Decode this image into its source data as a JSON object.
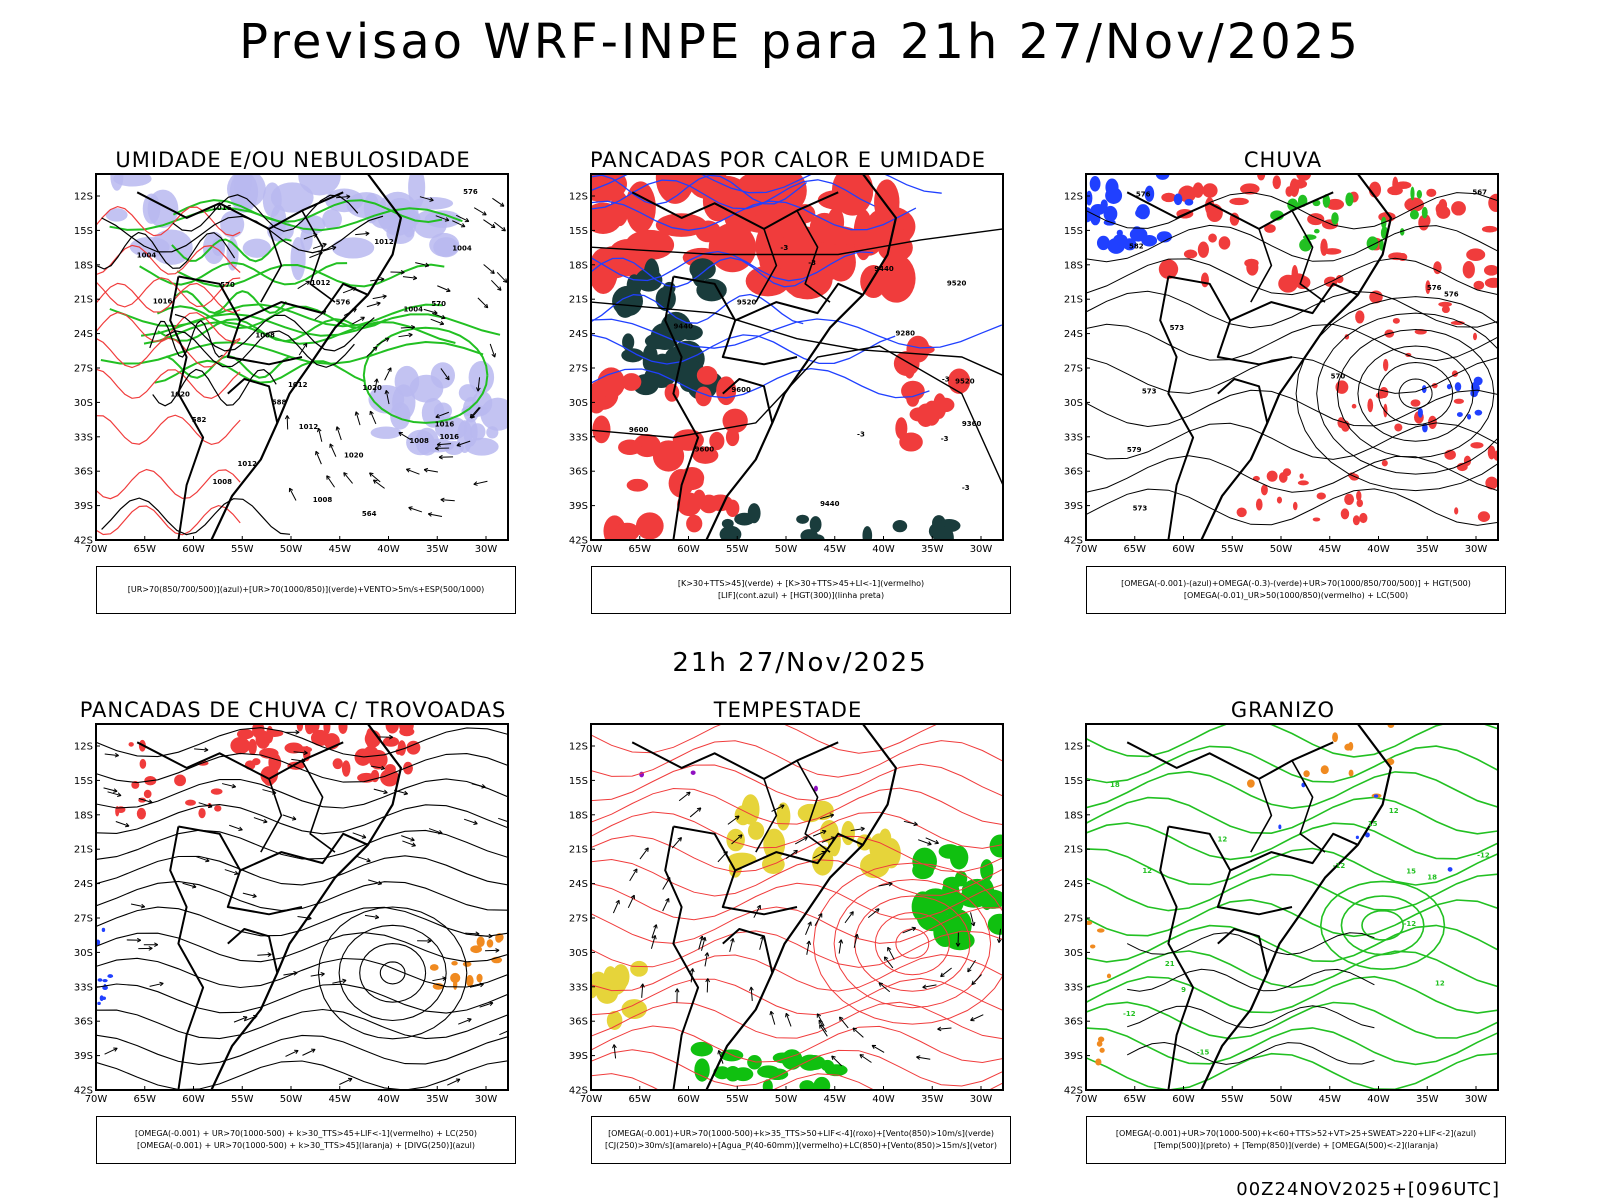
{
  "header": {
    "title": "Previsao WRF-INPE  para 21h 27/Nov/2025",
    "subtitle": "21h 27/Nov/2025",
    "footer": "00Z24NOV2025+[096UTC]"
  },
  "axes": {
    "lat_labels": [
      "12S",
      "15S",
      "18S",
      "21S",
      "24S",
      "27S",
      "30S",
      "33S",
      "36S",
      "39S",
      "42S"
    ],
    "lon_labels": [
      "70W",
      "65W",
      "60W",
      "55W",
      "50W",
      "45W",
      "40W",
      "35W",
      "30W"
    ]
  },
  "colors": {
    "red": "#f03c3c",
    "green": "#22c022",
    "blue": "#2040ff",
    "lavender": "#b8b8f0",
    "darkteal": "#1a3c3c",
    "yellow": "#e6d43a",
    "orange": "#f08a20",
    "purple": "#9010c0",
    "brightgreen": "#10c010"
  },
  "panels": [
    {
      "id": "p1",
      "title": "UMIDADE E/OU NEBULOSIDADE",
      "legend": [
        "[UR>70(850/700/500)](azul)+[UR>70(1000/850)](verde)+VENTO>5m/s+ESP(500/1000)"
      ],
      "labels": [
        "1012",
        "1008",
        "1012",
        "1004",
        "1008",
        "1012",
        "1016",
        "1012",
        "1016",
        "1020",
        "1004",
        "1008",
        "1016",
        "1020",
        "1004",
        "1008",
        "1012",
        "1016",
        "1020",
        "570",
        "576",
        "582",
        "570",
        "564",
        "576",
        "588"
      ]
    },
    {
      "id": "p2",
      "title": "PANCADAS POR CALOR E UMIDADE",
      "legend": [
        "[K>30+TTS>45](verde) + [K>30+TTS>45+LI<-1](vermelho)",
        "[LIF](cont.azul) + [HGT(300)](linha preta)"
      ],
      "labels": [
        "9600",
        "9600",
        "9600",
        "9520",
        "9520",
        "9520",
        "9440",
        "9440",
        "9440",
        "9360",
        "9280",
        "-3",
        "-3",
        "-3",
        "-3",
        "-3",
        "-3"
      ]
    },
    {
      "id": "p3",
      "title": "CHUVA",
      "legend": [
        "[OMEGA(-0.001)-(azul)+OMEGA(-0.3)-(verde)+UR>70(1000/850/700/500)] + HGT(500)",
        "[OMEGA(-0.01)_UR>50(1000/850)(vermelho) + LC(500)"
      ],
      "labels": [
        "582",
        "576",
        "576",
        "573",
        "573",
        "573",
        "570",
        "567",
        "579",
        "576"
      ]
    },
    {
      "id": "p4",
      "title": "PANCADAS DE CHUVA C/ TROVOADAS",
      "legend": [
        "[OMEGA(-0.001) + UR>70(1000-500) + k>30_TTS>45+LIF<-1](vermelho) + LC(250)",
        "[OMEGA(-0.001) + UR>70(1000-500) + k>30_TTS>45](laranja) + [DIVG(250)](azul)"
      ],
      "labels": []
    },
    {
      "id": "p5",
      "title": "TEMPESTADE",
      "legend": [
        "[OMEGA(-0.001)+UR>70(1000-500)+k>35_TTS>50+LIF<-4](roxo)+[Vento(850)>10m/s](verde)",
        "[CJ(250)>30m/s](amarelo)+[Agua_P(40-60mm)](vermelho)+LC(850)+[Vento(850)>15m/s](vetor)"
      ],
      "labels": []
    },
    {
      "id": "p6",
      "title": "GRANIZO",
      "legend": [
        "[OMEGA(-0.001)+UR>70(1000-500)+k<60+TTS>52+VT>25+SWEAT>220+LIF<-2](azul)",
        "[Temp(500)](preto) + [Temp(850)](verde) + [OMEGA(500)<-2](laranja)"
      ],
      "labels": [
        "-12",
        "-12",
        "-12",
        "-15",
        "12",
        "12",
        "15",
        "18",
        "21",
        "18",
        "15",
        "12",
        "12",
        "9",
        "-12"
      ]
    }
  ]
}
